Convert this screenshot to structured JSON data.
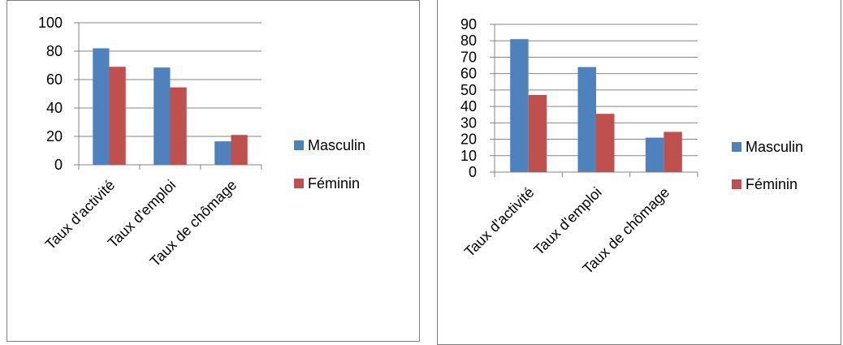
{
  "chart_data": [
    {
      "type": "bar",
      "categories": [
        "Taux d'activité",
        "Taux d'emploi",
        "Taux de chômage"
      ],
      "series": [
        {
          "name": "Masculin",
          "values": [
            82,
            68.5,
            16.5
          ]
        },
        {
          "name": "Féminin",
          "values": [
            69,
            54.5,
            21
          ]
        }
      ],
      "ylim": [
        0,
        100
      ],
      "yticks": [
        0,
        20,
        40,
        60,
        80,
        100
      ],
      "grid": true,
      "legend": "right",
      "colors": [
        "#4f81bd",
        "#c0504d"
      ]
    },
    {
      "type": "bar",
      "categories": [
        "Taux d'activité",
        "Taux d'emploi",
        "Taux de chômage"
      ],
      "series": [
        {
          "name": "Masculin",
          "values": [
            81,
            64,
            21
          ]
        },
        {
          "name": "Féminin",
          "values": [
            47,
            35.5,
            24.5
          ]
        }
      ],
      "ylim": [
        0,
        90
      ],
      "yticks": [
        0,
        10,
        20,
        30,
        40,
        50,
        60,
        70,
        80,
        90
      ],
      "grid": true,
      "legend": "right",
      "colors": [
        "#4f81bd",
        "#c0504d"
      ]
    }
  ]
}
